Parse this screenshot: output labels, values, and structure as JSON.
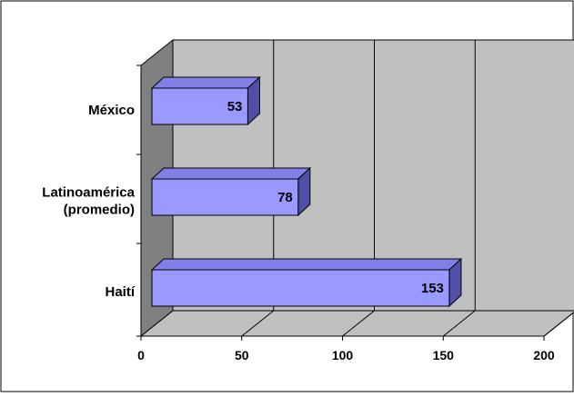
{
  "colors": {
    "bar_front": "#9999ff",
    "bar_top": "#8080e6",
    "bar_side": "#5050a8",
    "wall": "#c0c0c0",
    "side_wall": "#808080",
    "floor": "#c0c0c0",
    "gridline": "#000000"
  },
  "chart_data": {
    "type": "bar",
    "orientation": "horizontal",
    "three_d": true,
    "categories": [
      "México",
      "Latinoamérica (promedio)",
      "Haití"
    ],
    "category_display": [
      [
        "México"
      ],
      [
        "Latinoamérica",
        "(promedio)"
      ],
      [
        "Haití"
      ]
    ],
    "values": [
      53,
      78,
      153
    ],
    "data_labels": [
      "53",
      "78",
      "153"
    ],
    "x_ticks": [
      "0",
      "50",
      "100",
      "150",
      "200"
    ],
    "xlim": [
      0,
      200
    ],
    "grid": true,
    "legend": "none",
    "title": "",
    "xlabel": "",
    "ylabel": ""
  }
}
